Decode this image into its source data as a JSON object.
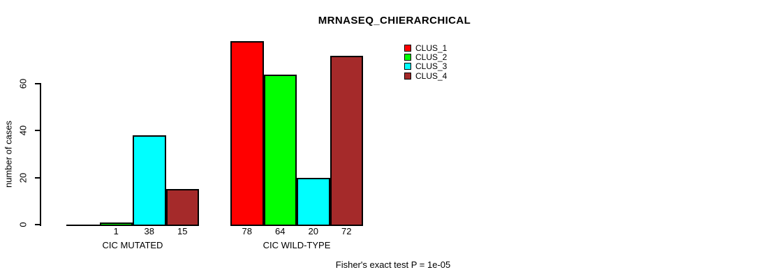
{
  "title": "MRNASEQ_CHIERARCHICAL",
  "footnote": "Fisher's exact test P = 1e-05",
  "chart_data": {
    "type": "bar",
    "title": "MRNASEQ_CHIERARCHICAL",
    "xlabel": "",
    "ylabel": "number of cases",
    "ylim": [
      0,
      60
    ],
    "yticks": [
      0,
      20,
      40,
      60
    ],
    "grid": false,
    "legend_position": "top-right-inside",
    "series": [
      {
        "name": "CLUS_1",
        "color": "#FF0000"
      },
      {
        "name": "CLUS_2",
        "color": "#00FF00"
      },
      {
        "name": "CLUS_3",
        "color": "#00FFFF"
      },
      {
        "name": "CLUS_4",
        "color": "#A52A2A"
      }
    ],
    "groups": [
      {
        "label": "CIC MUTATED",
        "values": [
          0,
          1,
          38,
          15
        ],
        "bar_labels": [
          "",
          "1",
          "38",
          "15"
        ]
      },
      {
        "label": "CIC WILD-TYPE",
        "values": [
          78,
          64,
          20,
          72
        ],
        "bar_labels": [
          "78",
          "64",
          "20",
          "72"
        ]
      }
    ],
    "annotation": "Fisher's exact test P = 1e-05"
  }
}
